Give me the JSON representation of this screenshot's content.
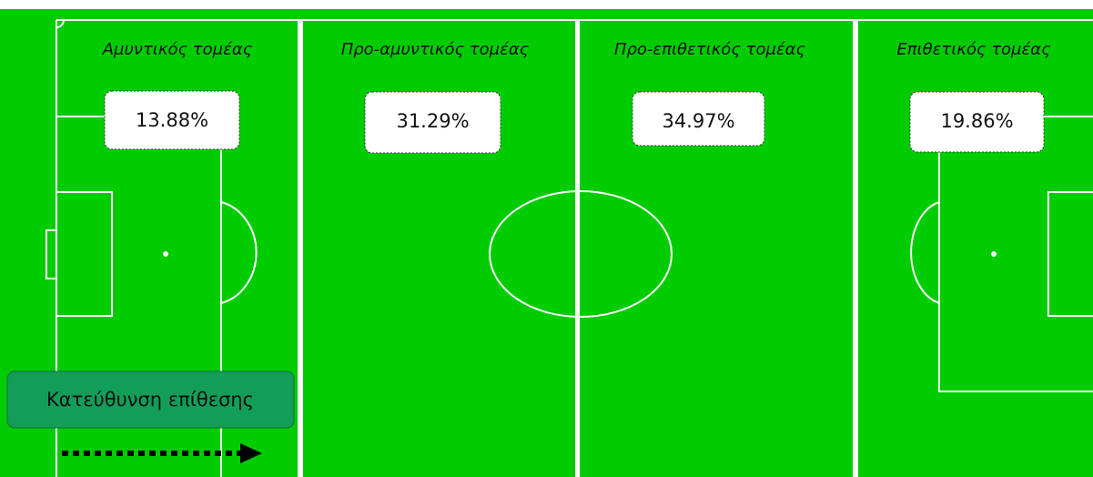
{
  "zones": [
    {
      "label": "Αμυντικός τομέας",
      "value": "13.88%"
    },
    {
      "label": "Προ-αμυντικός τομέας",
      "value": "31.29%"
    },
    {
      "label": "Προ-επιθετικός τομέας",
      "value": "34.97%"
    },
    {
      "label": "Επιθετικός τομέας",
      "value": "19.86%"
    }
  ],
  "direction_label": "Κατεύθυνση επίθεσης"
}
